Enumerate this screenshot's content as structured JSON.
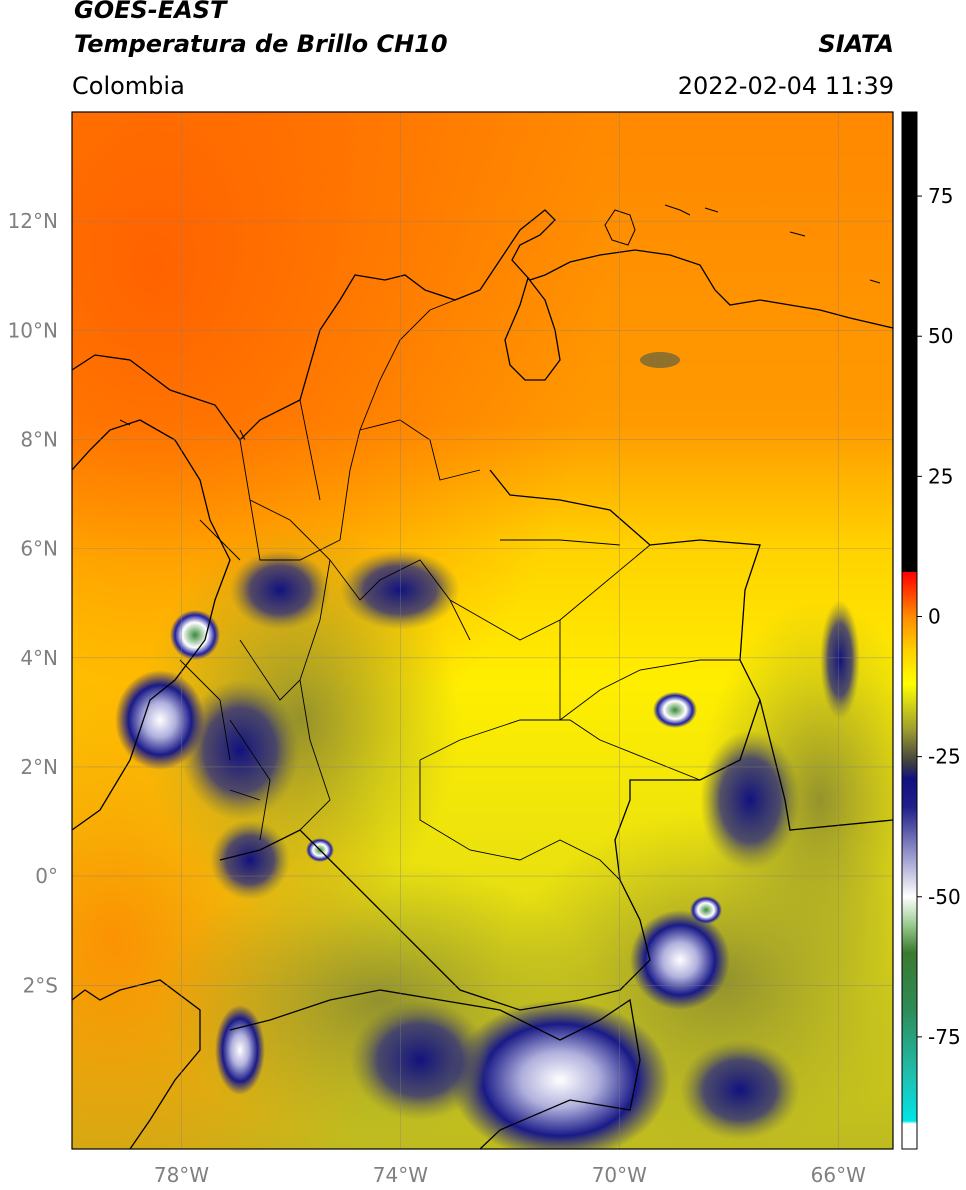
{
  "header": {
    "line1": "GOES-EAST",
    "line2": "Temperatura de Brillo CH10",
    "brand": "SIATA",
    "region": "Colombia",
    "datetime": "2022-02-04 11:39"
  },
  "map": {
    "lat_ticks": [
      {
        "label": "12°N",
        "value": 12
      },
      {
        "label": "10°N",
        "value": 10
      },
      {
        "label": "8°N",
        "value": 8
      },
      {
        "label": "6°N",
        "value": 6
      },
      {
        "label": "4°N",
        "value": 4
      },
      {
        "label": "2°N",
        "value": 2
      },
      {
        "label": "0°",
        "value": 0
      },
      {
        "label": "2°S",
        "value": -2
      }
    ],
    "lon_ticks": [
      {
        "label": "78°W",
        "value": -78
      },
      {
        "label": "74°W",
        "value": -74
      },
      {
        "label": "70°W",
        "value": -70
      },
      {
        "label": "66°W",
        "value": -66
      }
    ],
    "lon_range": [
      -80,
      -65
    ],
    "lat_range": [
      -5,
      14
    ],
    "tick_color": "#808080"
  },
  "colorbar": {
    "range": [
      -95,
      90
    ],
    "ticks": [
      {
        "label": "75",
        "value": 75
      },
      {
        "label": "50",
        "value": 50
      },
      {
        "label": "25",
        "value": 25
      },
      {
        "label": "0",
        "value": 0
      },
      {
        "label": "-25",
        "value": -25
      },
      {
        "label": "-50",
        "value": -50
      },
      {
        "label": "-75",
        "value": -75
      }
    ],
    "stops": [
      {
        "value": -95,
        "color": "#ffffff"
      },
      {
        "value": -90.5,
        "color": "#ffffff"
      },
      {
        "value": -90,
        "color": "#00e5e5"
      },
      {
        "value": -82,
        "color": "#20c0b0"
      },
      {
        "value": -70,
        "color": "#2e8b57"
      },
      {
        "value": -60,
        "color": "#3a7a30"
      },
      {
        "value": -55,
        "color": "#9acb90"
      },
      {
        "value": -50,
        "color": "#ffffff"
      },
      {
        "value": -42,
        "color": "#9090c8"
      },
      {
        "value": -34,
        "color": "#20208a"
      },
      {
        "value": -29,
        "color": "#101080"
      },
      {
        "value": -26,
        "color": "#404040"
      },
      {
        "value": -20,
        "color": "#a0a030"
      },
      {
        "value": -12,
        "color": "#ffff00"
      },
      {
        "value": -6,
        "color": "#ffd000"
      },
      {
        "value": 0,
        "color": "#ff8c00"
      },
      {
        "value": 6,
        "color": "#ff2000"
      },
      {
        "value": 7.9,
        "color": "#ff0000"
      },
      {
        "value": 8,
        "color": "#000000"
      },
      {
        "value": 90,
        "color": "#000000"
      }
    ]
  }
}
